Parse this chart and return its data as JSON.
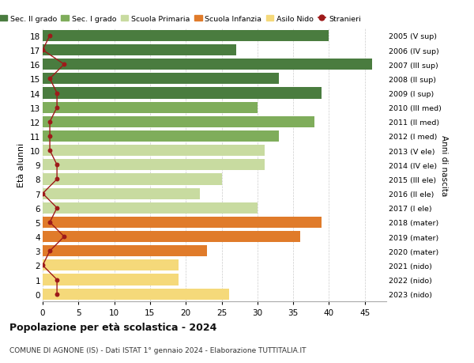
{
  "ages": [
    18,
    17,
    16,
    15,
    14,
    13,
    12,
    11,
    10,
    9,
    8,
    7,
    6,
    5,
    4,
    3,
    2,
    1,
    0
  ],
  "bar_values": [
    40,
    27,
    46,
    33,
    39,
    30,
    38,
    33,
    31,
    31,
    25,
    22,
    30,
    39,
    36,
    23,
    19,
    19,
    26
  ],
  "stranieri": [
    1,
    0,
    3,
    1,
    2,
    2,
    1,
    1,
    1,
    2,
    2,
    0,
    2,
    1,
    3,
    1,
    0,
    2,
    2
  ],
  "right_labels": [
    "2005 (V sup)",
    "2006 (IV sup)",
    "2007 (III sup)",
    "2008 (II sup)",
    "2009 (I sup)",
    "2010 (III med)",
    "2011 (II med)",
    "2012 (I med)",
    "2013 (V ele)",
    "2014 (IV ele)",
    "2015 (III ele)",
    "2016 (II ele)",
    "2017 (I ele)",
    "2018 (mater)",
    "2019 (mater)",
    "2020 (mater)",
    "2021 (nido)",
    "2022 (nido)",
    "2023 (nido)"
  ],
  "bar_colors_by_age": {
    "18": "#4a7c3f",
    "17": "#4a7c3f",
    "16": "#4a7c3f",
    "15": "#4a7c3f",
    "14": "#4a7c3f",
    "13": "#7fad5b",
    "12": "#7fad5b",
    "11": "#7fad5b",
    "10": "#c8dba0",
    "9": "#c8dba0",
    "8": "#c8dba0",
    "7": "#c8dba0",
    "6": "#c8dba0",
    "5": "#e07b2a",
    "4": "#e07b2a",
    "3": "#e07b2a",
    "2": "#f5d97a",
    "1": "#f5d97a",
    "0": "#f5d97a"
  },
  "stranieri_color": "#9e1a1a",
  "legend_labels": [
    "Sec. II grado",
    "Sec. I grado",
    "Scuola Primaria",
    "Scuola Infanzia",
    "Asilo Nido",
    "Stranieri"
  ],
  "legend_colors": [
    "#4a7c3f",
    "#7fad5b",
    "#c8dba0",
    "#e07b2a",
    "#f5d97a",
    "#9e1a1a"
  ],
  "title": "Popolazione per età scolastica - 2024",
  "subtitle": "COMUNE DI AGNONE (IS) - Dati ISTAT 1° gennaio 2024 - Elaborazione TUTTITALIA.IT",
  "ylabel": "Età alunni",
  "right_ylabel": "Anni di nascita",
  "xlim": [
    0,
    48
  ],
  "background_color": "#ffffff",
  "grid_color": "#cccccc"
}
